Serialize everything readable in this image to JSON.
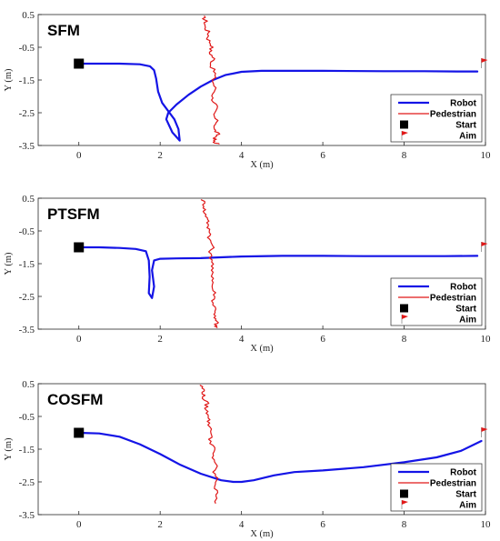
{
  "colors": {
    "robot": "#1414e6",
    "pedestrian": "#e01818",
    "start": "#000000",
    "aim": "#e01818",
    "axis": "#262626"
  },
  "chart_data": [
    {
      "type": "line",
      "title": "SFM",
      "xlabel": "X (m)",
      "ylabel": "Y (m)",
      "xlim": [
        -1,
        10
      ],
      "ylim": [
        -3.5,
        0.5
      ],
      "xticks": [
        0,
        2,
        4,
        6,
        8,
        10
      ],
      "yticks": [
        0.5,
        -0.5,
        -1.5,
        -2.5,
        -3.5
      ],
      "legend": [
        "Robot",
        "Pedestrian",
        "Start",
        "Aim"
      ],
      "legend_position": "bottom-right",
      "start": [
        0,
        -1.0
      ],
      "aim": [
        9.9,
        -1.0
      ],
      "series": [
        {
          "name": "Robot",
          "x": [
            0,
            0.5,
            1.0,
            1.5,
            1.75,
            1.85,
            1.9,
            1.95,
            2.05,
            2.2,
            2.35,
            2.45,
            2.48,
            2.3,
            2.15,
            2.2,
            2.4,
            2.7,
            3.0,
            3.3,
            3.6,
            4.0,
            4.5,
            6.0,
            7.5,
            8.5,
            9.3,
            9.8
          ],
          "y": [
            -1.0,
            -1.0,
            -1.0,
            -1.02,
            -1.08,
            -1.2,
            -1.45,
            -1.85,
            -2.2,
            -2.45,
            -2.7,
            -3.0,
            -3.35,
            -3.1,
            -2.7,
            -2.5,
            -2.25,
            -1.95,
            -1.7,
            -1.5,
            -1.35,
            -1.25,
            -1.22,
            -1.22,
            -1.23,
            -1.23,
            -1.24,
            -1.24
          ]
        },
        {
          "name": "Pedestrian",
          "x": [
            3.05,
            3.12,
            3.1,
            3.2,
            3.18,
            3.28,
            3.22,
            3.32,
            3.25,
            3.35,
            3.3,
            3.36,
            3.28,
            3.38,
            3.3,
            3.4,
            3.32,
            3.42,
            3.35,
            3.3,
            3.45
          ],
          "y": [
            0.45,
            0.3,
            0.1,
            -0.05,
            -0.25,
            -0.45,
            -0.65,
            -0.85,
            -1.05,
            -1.3,
            -1.55,
            -1.8,
            -2.05,
            -2.3,
            -2.55,
            -2.8,
            -3.0,
            -3.15,
            -3.28,
            -3.4,
            -3.45
          ]
        }
      ]
    },
    {
      "type": "line",
      "title": "PTSFM",
      "xlabel": "X (m)",
      "ylabel": "Y (m)",
      "xlim": [
        -1,
        10
      ],
      "ylim": [
        -3.5,
        0.5
      ],
      "xticks": [
        0,
        2,
        4,
        6,
        8,
        10
      ],
      "yticks": [
        0.5,
        -0.5,
        -1.5,
        -2.5,
        -3.5
      ],
      "legend": [
        "Robot",
        "Pedestrian",
        "Start",
        "Aim"
      ],
      "legend_position": "bottom-right",
      "start": [
        0,
        -1.0
      ],
      "aim": [
        9.9,
        -1.0
      ],
      "series": [
        {
          "name": "Robot",
          "x": [
            0,
            0.5,
            1.0,
            1.4,
            1.65,
            1.72,
            1.74,
            1.72,
            1.8,
            1.85,
            1.8,
            1.85,
            2.0,
            2.4,
            3.0,
            4.0,
            5.0,
            6.0,
            7.0,
            8.0,
            9.0,
            9.8
          ],
          "y": [
            -1.0,
            -1.0,
            -1.02,
            -1.05,
            -1.12,
            -1.4,
            -1.9,
            -2.4,
            -2.55,
            -2.2,
            -1.7,
            -1.4,
            -1.35,
            -1.34,
            -1.33,
            -1.28,
            -1.26,
            -1.26,
            -1.27,
            -1.27,
            -1.27,
            -1.26
          ]
        },
        {
          "name": "Pedestrian",
          "x": [
            3.05,
            3.1,
            3.08,
            3.2,
            3.15,
            3.25,
            3.2,
            3.3,
            3.22,
            3.3,
            3.25,
            3.32,
            3.28,
            3.35,
            3.3,
            3.38,
            3.32,
            3.4,
            3.35,
            3.4
          ],
          "y": [
            0.45,
            0.25,
            0.05,
            -0.15,
            -0.35,
            -0.55,
            -0.75,
            -0.95,
            -1.2,
            -1.45,
            -1.7,
            -1.95,
            -2.2,
            -2.45,
            -2.7,
            -2.95,
            -3.15,
            -3.3,
            -3.4,
            -3.45
          ]
        }
      ]
    },
    {
      "type": "line",
      "title": "COSFM",
      "xlabel": "X (m)",
      "ylabel": "Y (m)",
      "xlim": [
        -1,
        10
      ],
      "ylim": [
        -3.5,
        0.5
      ],
      "xticks": [
        0,
        2,
        4,
        6,
        8,
        10
      ],
      "yticks": [
        0.5,
        -0.5,
        -1.5,
        -2.5,
        -3.5
      ],
      "legend": [
        "Robot",
        "Pedestrian",
        "Start",
        "Aim"
      ],
      "legend_position": "bottom-right",
      "start": [
        0,
        -1.0
      ],
      "aim": [
        9.9,
        -1.0
      ],
      "series": [
        {
          "name": "Robot",
          "x": [
            0,
            0.5,
            1.0,
            1.5,
            2.0,
            2.5,
            3.0,
            3.5,
            3.8,
            4.0,
            4.3,
            4.8,
            5.3,
            6.0,
            7.0,
            8.0,
            8.8,
            9.4,
            9.9
          ],
          "y": [
            -1.0,
            -1.02,
            -1.12,
            -1.35,
            -1.65,
            -1.98,
            -2.25,
            -2.45,
            -2.5,
            -2.5,
            -2.45,
            -2.3,
            -2.2,
            -2.15,
            -2.05,
            -1.9,
            -1.75,
            -1.55,
            -1.25
          ]
        },
        {
          "name": "Pedestrian",
          "x": [
            3.0,
            3.08,
            3.05,
            3.15,
            3.12,
            3.22,
            3.18,
            3.28,
            3.22,
            3.32,
            3.28,
            3.38,
            3.32,
            3.4,
            3.35,
            3.42,
            3.36
          ],
          "y": [
            0.45,
            0.28,
            0.1,
            -0.1,
            -0.3,
            -0.5,
            -0.7,
            -0.95,
            -1.2,
            -1.45,
            -1.7,
            -1.95,
            -2.2,
            -2.45,
            -2.7,
            -2.95,
            -3.15
          ]
        }
      ]
    }
  ]
}
